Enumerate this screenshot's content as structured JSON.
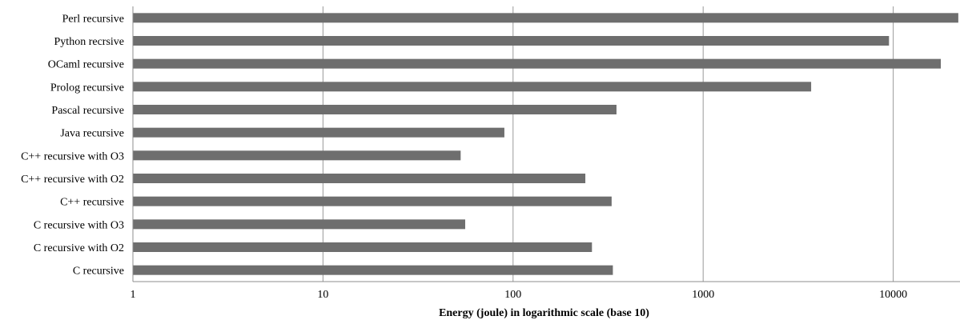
{
  "chart_data": {
    "type": "bar",
    "orientation": "horizontal",
    "xlabel": "Energy (joule) in logarithmic scale (base 10)",
    "ylabel": "",
    "x_scale": "log10",
    "xlim": [
      1,
      22000
    ],
    "xticks": [
      "1",
      "10",
      "100",
      "1000",
      "10000"
    ],
    "grid": true,
    "bar_color": "#6e6e6e",
    "categories": [
      "Perl recursive",
      "Python recrsive",
      "OCaml recursive",
      "Prolog recursive",
      "Pascal recursive",
      "Java recursive",
      "C++ recursive with O3",
      "C++ recursive with O2",
      "C++ recursive",
      "C recursive with O3",
      "C recursive with O2",
      "C recursive"
    ],
    "values": [
      22000,
      9500,
      17800,
      3700,
      350,
      90,
      53,
      240,
      330,
      56,
      260,
      335
    ]
  }
}
